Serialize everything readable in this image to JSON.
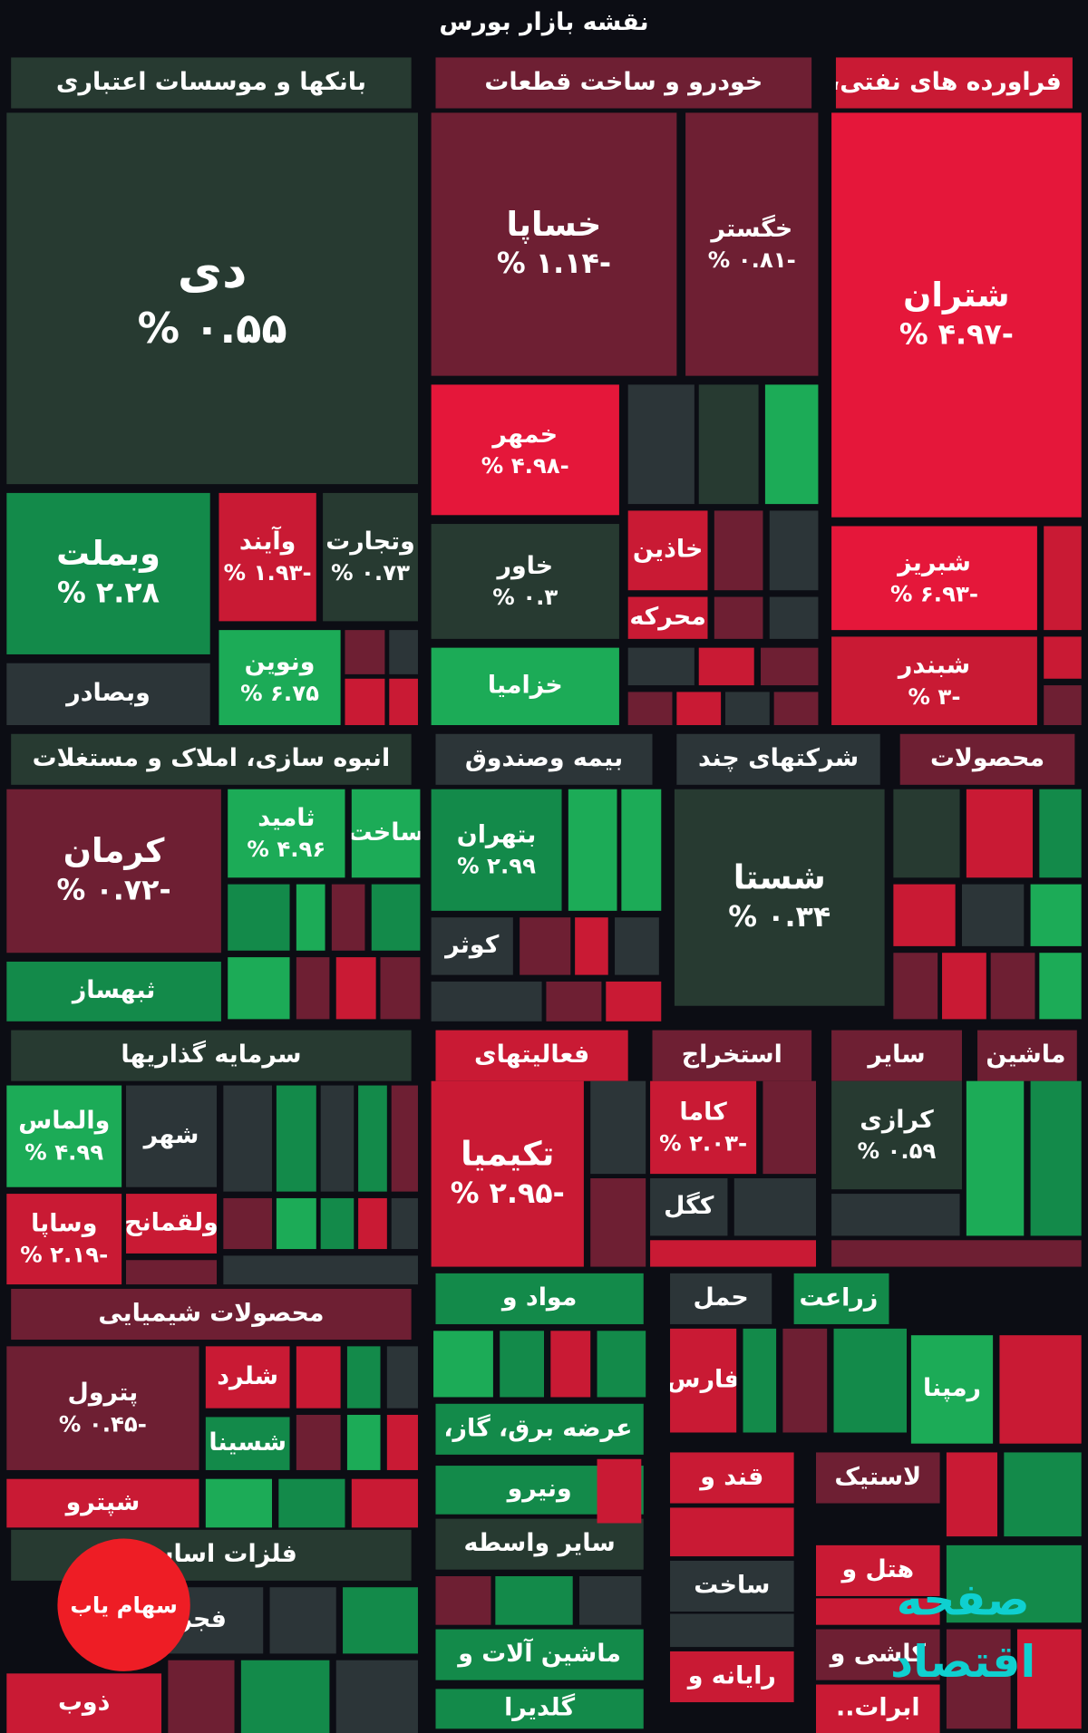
{
  "title": "نقشه بازار بورس",
  "colors": {
    "bg": "#0c0d14",
    "header": "#171a24",
    "strong_red": "#e5173a",
    "red": "#c91a34",
    "dark_red": "#6e1f33",
    "neutral": "#2c3538",
    "dark_green": "#273a31",
    "green": "#138a4a",
    "bright_green": "#1cab57"
  },
  "sectors": [
    {
      "name": "بانکها و موسسات اعتباری",
      "color": "dark_green"
    },
    {
      "name": "خودرو و ساخت قطعات",
      "color": "dark_red"
    },
    {
      "name": "فراورده های نفتی،",
      "color": "red"
    },
    {
      "name": "انبوه سازی، املاک و مستغلات",
      "color": "dark_green"
    },
    {
      "name": "بیمه وصندوق",
      "color": "neutral"
    },
    {
      "name": "شرکتهای چند",
      "color": "neutral"
    },
    {
      "name": "محصولات",
      "color": "dark_red"
    },
    {
      "name": "سرمایه گذاریها",
      "color": "dark_green"
    },
    {
      "name": "فعالیتهای",
      "color": "red"
    },
    {
      "name": "استخراج",
      "color": "dark_red"
    },
    {
      "name": "سایر",
      "color": "dark_red"
    },
    {
      "name": "ماشین",
      "color": "dark_red"
    },
    {
      "name": "محصولات شیمیایی",
      "color": "dark_red"
    },
    {
      "name": "مواد و",
      "color": "green"
    },
    {
      "name": "حمل",
      "color": "neutral"
    },
    {
      "name": "زراعت",
      "color": "green"
    },
    {
      "name": "عرضه برق، گاز،",
      "color": "green"
    },
    {
      "name": "قند و",
      "color": "red"
    },
    {
      "name": "لاستیک",
      "color": "dark_red"
    },
    {
      "name": "ونیرو",
      "color": "green"
    },
    {
      "name": "سایر واسطه",
      "color": "dark_green"
    },
    {
      "name": "ساخت",
      "color": "neutral"
    },
    {
      "name": "هتل و",
      "color": "red"
    },
    {
      "name": "فلزات اساسی",
      "color": "dark_green"
    },
    {
      "name": "ماشین آلات و",
      "color": "green"
    },
    {
      "name": "رایانه و",
      "color": "red"
    },
    {
      "name": "کاشی و",
      "color": "dark_red"
    },
    {
      "name": "گلدیرا",
      "color": "green"
    }
  ],
  "chart_data": {
    "type": "heatmap",
    "title": "نقشه بازار بورس",
    "value_unit": "%",
    "tiles": [
      {
        "symbol": "دی",
        "change": 0.55,
        "label": "۰.۵۵ %",
        "sector": "بانکها و موسسات اعتباری"
      },
      {
        "symbol": "وبملت",
        "change": 2.28,
        "label": "۲.۲۸ %",
        "sector": "بانکها و موسسات اعتباری"
      },
      {
        "symbol": "وآیند",
        "change": -1.93,
        "label": "-۱.۹۳ %",
        "sector": "بانکها و موسسات اعتباری"
      },
      {
        "symbol": "وتجارت",
        "change": 0.73,
        "label": "۰.۷۳ %",
        "sector": "بانکها و موسسات اعتباری"
      },
      {
        "symbol": "ونوین",
        "change": 6.75,
        "label": "۶.۷۵ %",
        "sector": "بانکها و موسسات اعتباری"
      },
      {
        "symbol": "وبصادر",
        "change": null,
        "label": "",
        "sector": "بانکها و موسسات اعتباری"
      },
      {
        "symbol": "خساپا",
        "change": -1.14,
        "label": "-۱.۱۴ %",
        "sector": "خودرو و ساخت قطعات"
      },
      {
        "symbol": "خگستر",
        "change": -0.81,
        "label": "-۰.۸۱ %",
        "sector": "خودرو و ساخت قطعات"
      },
      {
        "symbol": "خمهر",
        "change": -4.98,
        "label": "-۴.۹۸ %",
        "sector": "خودرو و ساخت قطعات"
      },
      {
        "symbol": "خاور",
        "change": 0.3,
        "label": "۰.۳ %",
        "sector": "خودرو و ساخت قطعات"
      },
      {
        "symbol": "خاذین",
        "change": null,
        "label": "",
        "sector": "خودرو و ساخت قطعات"
      },
      {
        "symbol": "محرکه",
        "change": null,
        "label": "",
        "sector": "خودرو و ساخت قطعات"
      },
      {
        "symbol": "خزامیا",
        "change": null,
        "label": "",
        "sector": "خودرو و ساخت قطعات"
      },
      {
        "symbol": "شتران",
        "change": -4.97,
        "label": "-۴.۹۷ %",
        "sector": "فراورده های نفتی،"
      },
      {
        "symbol": "شبریز",
        "change": -6.93,
        "label": "-۶.۹۳ %",
        "sector": "فراورده های نفتی،"
      },
      {
        "symbol": "شبندر",
        "change": -3,
        "label": "-۳ %",
        "sector": "فراورده های نفتی،"
      },
      {
        "symbol": "کرمان",
        "change": -0.72,
        "label": "-۰.۷۲ %",
        "sector": "انبوه سازی، املاک و مستغلات"
      },
      {
        "symbol": "ثامید",
        "change": 4.96,
        "label": "۴.۹۶ %",
        "sector": "انبوه سازی، املاک و مستغلات"
      },
      {
        "symbol": "ساخت",
        "change": null,
        "label": "",
        "sector": "انبوه سازی، املاک و مستغلات"
      },
      {
        "symbol": "ثبهساز",
        "change": null,
        "label": "",
        "sector": "انبوه سازی، املاک و مستغلات"
      },
      {
        "symbol": "بتهران",
        "change": 2.99,
        "label": "۲.۹۹ %",
        "sector": "بیمه وصندوق"
      },
      {
        "symbol": "کوثر",
        "change": null,
        "label": "",
        "sector": "بیمه وصندوق"
      },
      {
        "symbol": "شستا",
        "change": 0.34,
        "label": "۰.۳۴ %",
        "sector": "شرکتهای چند"
      },
      {
        "symbol": "والماس",
        "change": 4.99,
        "label": "۴.۹۹ %",
        "sector": "سرمایه گذاریها"
      },
      {
        "symbol": "شهر",
        "change": null,
        "label": "",
        "sector": "سرمایه گذاریها"
      },
      {
        "symbol": "وساپا",
        "change": -2.19,
        "label": "-۲.۱۹ %",
        "sector": "سرمایه گذاریها"
      },
      {
        "symbol": "ولقمانح",
        "change": null,
        "label": "",
        "sector": "سرمایه گذاریها"
      },
      {
        "symbol": "تکیمیا",
        "change": -2.95,
        "label": "-۲.۹۵ %",
        "sector": "فعالیتهای"
      },
      {
        "symbol": "کاما",
        "change": -2.03,
        "label": "-۲.۰۳ %",
        "sector": "استخراج"
      },
      {
        "symbol": "کگل",
        "change": null,
        "label": "",
        "sector": "استخراج"
      },
      {
        "symbol": "کرازی",
        "change": 0.59,
        "label": "۰.۵۹ %",
        "sector": "سایر"
      },
      {
        "symbol": "پترول",
        "change": -0.45,
        "label": "-۰.۴۵ %",
        "sector": "محصولات شیمیایی"
      },
      {
        "symbol": "شلرد",
        "change": null,
        "label": "",
        "sector": "محصولات شیمیایی"
      },
      {
        "symbol": "شسینا",
        "change": null,
        "label": "",
        "sector": "محصولات شیمیایی"
      },
      {
        "symbol": "شپترو",
        "change": null,
        "label": "",
        "sector": "محصولات شیمیایی"
      },
      {
        "symbol": "فارس",
        "change": null,
        "label": "",
        "sector": "حمل"
      },
      {
        "symbol": "رمپنا",
        "change": null,
        "label": "",
        "sector": "ماشین"
      },
      {
        "symbol": "فجر",
        "change": null,
        "label": "",
        "sector": "فلزات اساسی"
      },
      {
        "symbol": "ذوب",
        "change": null,
        "label": "",
        "sector": "فلزات اساسی"
      },
      {
        "symbol": "ابرات..",
        "change": null,
        "label": "",
        "sector": "کاشی و"
      }
    ]
  },
  "logo": {
    "text": "سهام یاب"
  },
  "watermark": {
    "text": "صفحه اقتصاد"
  }
}
